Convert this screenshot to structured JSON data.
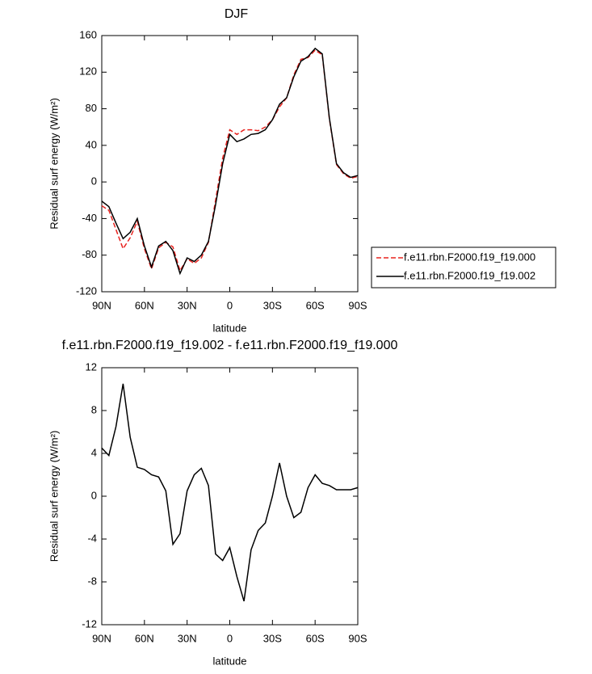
{
  "chart_data": [
    {
      "type": "line",
      "title": "DJF",
      "x_label": "latitude",
      "y_label": "Residual surf energy (W/m²)",
      "x": [
        90,
        85,
        80,
        75,
        70,
        65,
        60,
        55,
        50,
        45,
        40,
        35,
        30,
        25,
        20,
        15,
        10,
        5,
        0,
        -5,
        -10,
        -15,
        -20,
        -25,
        -30,
        -35,
        -40,
        -45,
        -50,
        -55,
        -60,
        -65,
        -70,
        -75,
        -80,
        -85,
        -90
      ],
      "xlim": [
        90,
        -90
      ],
      "xticks": [
        {
          "value": 90,
          "label": "90N"
        },
        {
          "value": 60,
          "label": "60N"
        },
        {
          "value": 30,
          "label": "30N"
        },
        0,
        {
          "value": -30,
          "label": "30S"
        },
        {
          "value": -60,
          "label": "60S"
        },
        {
          "value": -90,
          "label": "90S"
        }
      ],
      "ylim": [
        -120,
        160
      ],
      "yticks": [
        160,
        120,
        80,
        40,
        0,
        -40,
        -80,
        -120
      ],
      "legend": "right",
      "series": [
        {
          "name": "f.e11.rbn.F2000.f19_f19.000",
          "color": "#e8231f",
          "line_style": "dashed",
          "values": [
            -26,
            -31,
            -52,
            -73,
            -61,
            -43,
            -73,
            -95,
            -72,
            -66,
            -71,
            -97,
            -84,
            -89,
            -83,
            -66,
            -20,
            26,
            57,
            52,
            57,
            57,
            56,
            60,
            68,
            82,
            92,
            117,
            134,
            136,
            144,
            139,
            69,
            19,
            9,
            4,
            6
          ]
        },
        {
          "name": "f.e11.rbn.F2000.f19_f19.002",
          "color": "#000000",
          "line_style": "solid",
          "values": [
            -21,
            -27,
            -45,
            -62,
            -55,
            -40,
            -70,
            -93,
            -70,
            -65,
            -75,
            -100,
            -83,
            -87,
            -80,
            -65,
            -25,
            20,
            52,
            44,
            47,
            52,
            53,
            57,
            68,
            85,
            92,
            115,
            132,
            137,
            146,
            140,
            70,
            20,
            10,
            5,
            7
          ]
        }
      ]
    },
    {
      "type": "line",
      "title": "f.e11.rbn.F2000.f19_f19.002 - f.e11.rbn.F2000.f19_f19.000",
      "x_label": "latitude",
      "y_label": "Residual surf energy (W/m²)",
      "x": [
        90,
        85,
        80,
        75,
        70,
        65,
        60,
        55,
        50,
        45,
        40,
        35,
        30,
        25,
        20,
        15,
        10,
        5,
        0,
        -5,
        -10,
        -15,
        -20,
        -25,
        -30,
        -35,
        -40,
        -45,
        -50,
        -55,
        -60,
        -65,
        -70,
        -75,
        -80,
        -85,
        -90
      ],
      "xlim": [
        90,
        -90
      ],
      "xticks": [
        {
          "value": 90,
          "label": "90N"
        },
        {
          "value": 60,
          "label": "60N"
        },
        {
          "value": 30,
          "label": "30N"
        },
        0,
        {
          "value": -30,
          "label": "30S"
        },
        {
          "value": -60,
          "label": "60S"
        },
        {
          "value": -90,
          "label": "90S"
        }
      ],
      "ylim": [
        -12,
        12
      ],
      "yticks": [
        12,
        8,
        4,
        0,
        -4,
        -8,
        -12
      ],
      "series": [
        {
          "color": "#000000",
          "line_style": "solid",
          "values": [
            4.5,
            3.8,
            6.5,
            10.5,
            5.5,
            2.7,
            2.5,
            2.0,
            1.8,
            0.5,
            -4.5,
            -3.5,
            0.5,
            2,
            2.6,
            1.0,
            -5.4,
            -6,
            -4.8,
            -7.5,
            -9.8,
            -5,
            -3.2,
            -2.5,
            0,
            3.1,
            0,
            -2,
            -1.5,
            0.8,
            2,
            1.2,
            1.0,
            0.6,
            0.6,
            0.6,
            0.8
          ]
        }
      ]
    }
  ]
}
